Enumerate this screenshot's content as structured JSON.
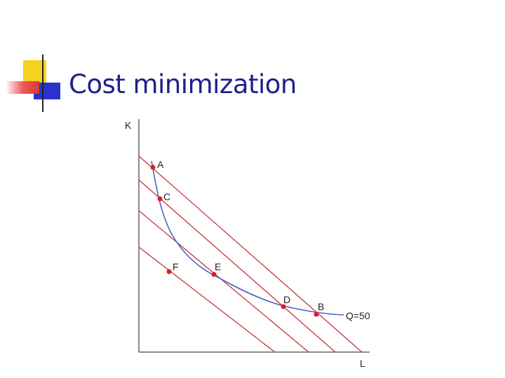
{
  "slide": {
    "title": "Cost minimization"
  },
  "diagram": {
    "axis_y_label": "K",
    "axis_x_label": "L",
    "isoquant_label": "Q=50",
    "points": [
      {
        "id": "A",
        "label": "A"
      },
      {
        "id": "C",
        "label": "C"
      },
      {
        "id": "F",
        "label": "F"
      },
      {
        "id": "E",
        "label": "E"
      },
      {
        "id": "D",
        "label": "D"
      },
      {
        "id": "B",
        "label": "B"
      }
    ]
  },
  "colors": {
    "title": "#1f1f8c",
    "isocost": "#c8353a",
    "isoquant": "#4a64c8",
    "point": "#d92020",
    "axis": "#666666",
    "accent_yellow": "#f5d21e",
    "accent_blue": "#2a33c9",
    "accent_red": "#ef5a5a"
  }
}
